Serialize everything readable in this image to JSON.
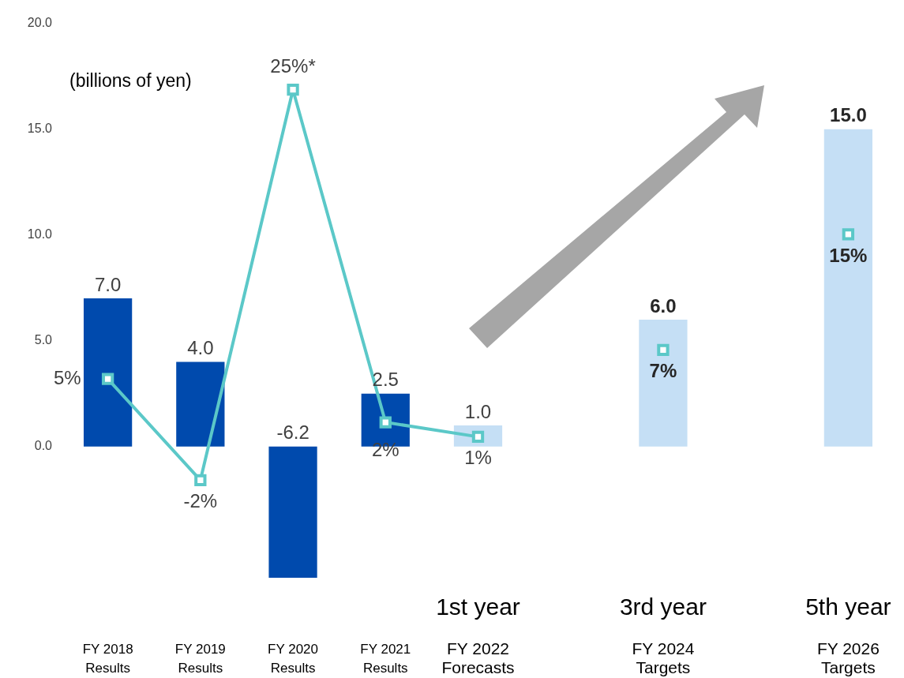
{
  "chart_data": {
    "type": "bar",
    "categories": [
      "FY 2018\nResults",
      "FY 2019\nResults",
      "FY 2020\nResults",
      "FY 2021\nResults",
      "FY 2022\nForecasts",
      null,
      "FY 2024\nTargets",
      null,
      "FY 2026\nTargets"
    ],
    "series": [
      {
        "type": "bar",
        "colors": [
          "#004aad",
          "#004aad",
          "#004aad",
          "#004aad",
          "#c5dff5",
          null,
          "#c5dff5",
          null,
          "#c5dff5"
        ],
        "values": [
          7.0,
          4.0,
          -6.2,
          2.5,
          1.0,
          null,
          6.0,
          null,
          15.0
        ],
        "value_labels": [
          "7.0",
          "4.0",
          "-6.2",
          "2.5",
          "1.0",
          null,
          "6.0",
          null,
          "15.0"
        ]
      },
      {
        "type": "line",
        "axis": "y2",
        "color": "#5bc8c8",
        "marker": "square",
        "values": [
          5,
          -2,
          25,
          2,
          1,
          null,
          7,
          null,
          15
        ],
        "value_labels": [
          "5%",
          "-2%",
          "25%*",
          "2%",
          "1%",
          null,
          "7%",
          null,
          "15%"
        ]
      }
    ],
    "ylim": [
      -6.2,
      20
    ],
    "yticks": [
      {
        "value": 0,
        "label": "0.0"
      },
      {
        "value": 5,
        "label": "5.0"
      },
      {
        "value": 10,
        "label": "10.0"
      },
      {
        "value": 15,
        "label": "15.0"
      },
      {
        "value": 20,
        "label": "20.0"
      }
    ],
    "grid": false,
    "legend": false,
    "annotations": [
      "(billions of yen)",
      "1st year",
      "3rd year",
      "5th year"
    ]
  }
}
